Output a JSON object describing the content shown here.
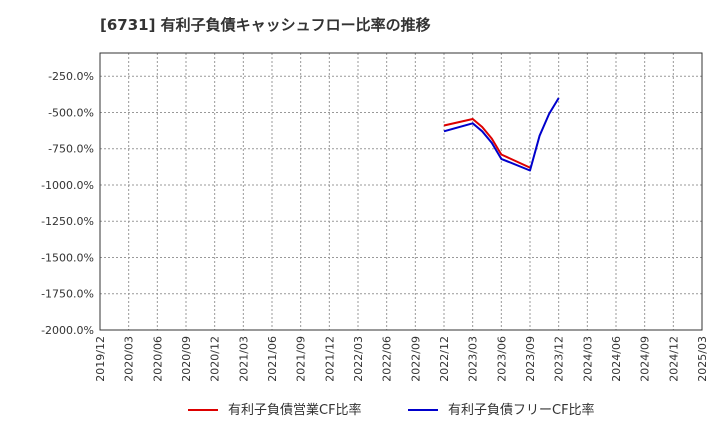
{
  "chart_data": {
    "type": "line",
    "title": "[6731]  有利子負債キャッシュフロー比率の推移",
    "xlabel": "",
    "ylabel": "",
    "categories": [
      "2019/12",
      "2020/03",
      "2020/06",
      "2020/09",
      "2020/12",
      "2021/03",
      "2021/06",
      "2021/09",
      "2021/12",
      "2022/03",
      "2022/06",
      "2022/09",
      "2022/12",
      "2023/03",
      "2023/06",
      "2023/09",
      "2023/12",
      "2024/03",
      "2024/06",
      "2024/09",
      "2024/12",
      "2025/03"
    ],
    "y_ticks": [
      "-250.0%",
      "-500.0%",
      "-750.0%",
      "-1000.0%",
      "-1250.0%",
      "-1500.0%",
      "-1750.0%",
      "-2000.0%"
    ],
    "ylim": [
      -2000,
      -90
    ],
    "grid": true,
    "legend_position": "bottom",
    "series": [
      {
        "name": "有利子負債営業CF比率",
        "color": "#dd0000",
        "points": [
          {
            "x": "2022/12",
            "y": -590
          },
          {
            "x": "2023/03",
            "y": -545
          },
          {
            "x": "2023/04",
            "y": -600
          },
          {
            "x": "2023/05",
            "y": -680
          },
          {
            "x": "2023/06",
            "y": -790
          },
          {
            "x": "2023/09",
            "y": -880
          }
        ]
      },
      {
        "name": "有利子負債フリーCF比率",
        "color": "#0000cc",
        "points": [
          {
            "x": "2022/12",
            "y": -630
          },
          {
            "x": "2023/03",
            "y": -575
          },
          {
            "x": "2023/04",
            "y": -630
          },
          {
            "x": "2023/05",
            "y": -710
          },
          {
            "x": "2023/06",
            "y": -820
          },
          {
            "x": "2023/09",
            "y": -900
          },
          {
            "x": "2023/10",
            "y": -660
          },
          {
            "x": "2023/11",
            "y": -510
          },
          {
            "x": "2023/12",
            "y": -400
          }
        ]
      }
    ]
  }
}
